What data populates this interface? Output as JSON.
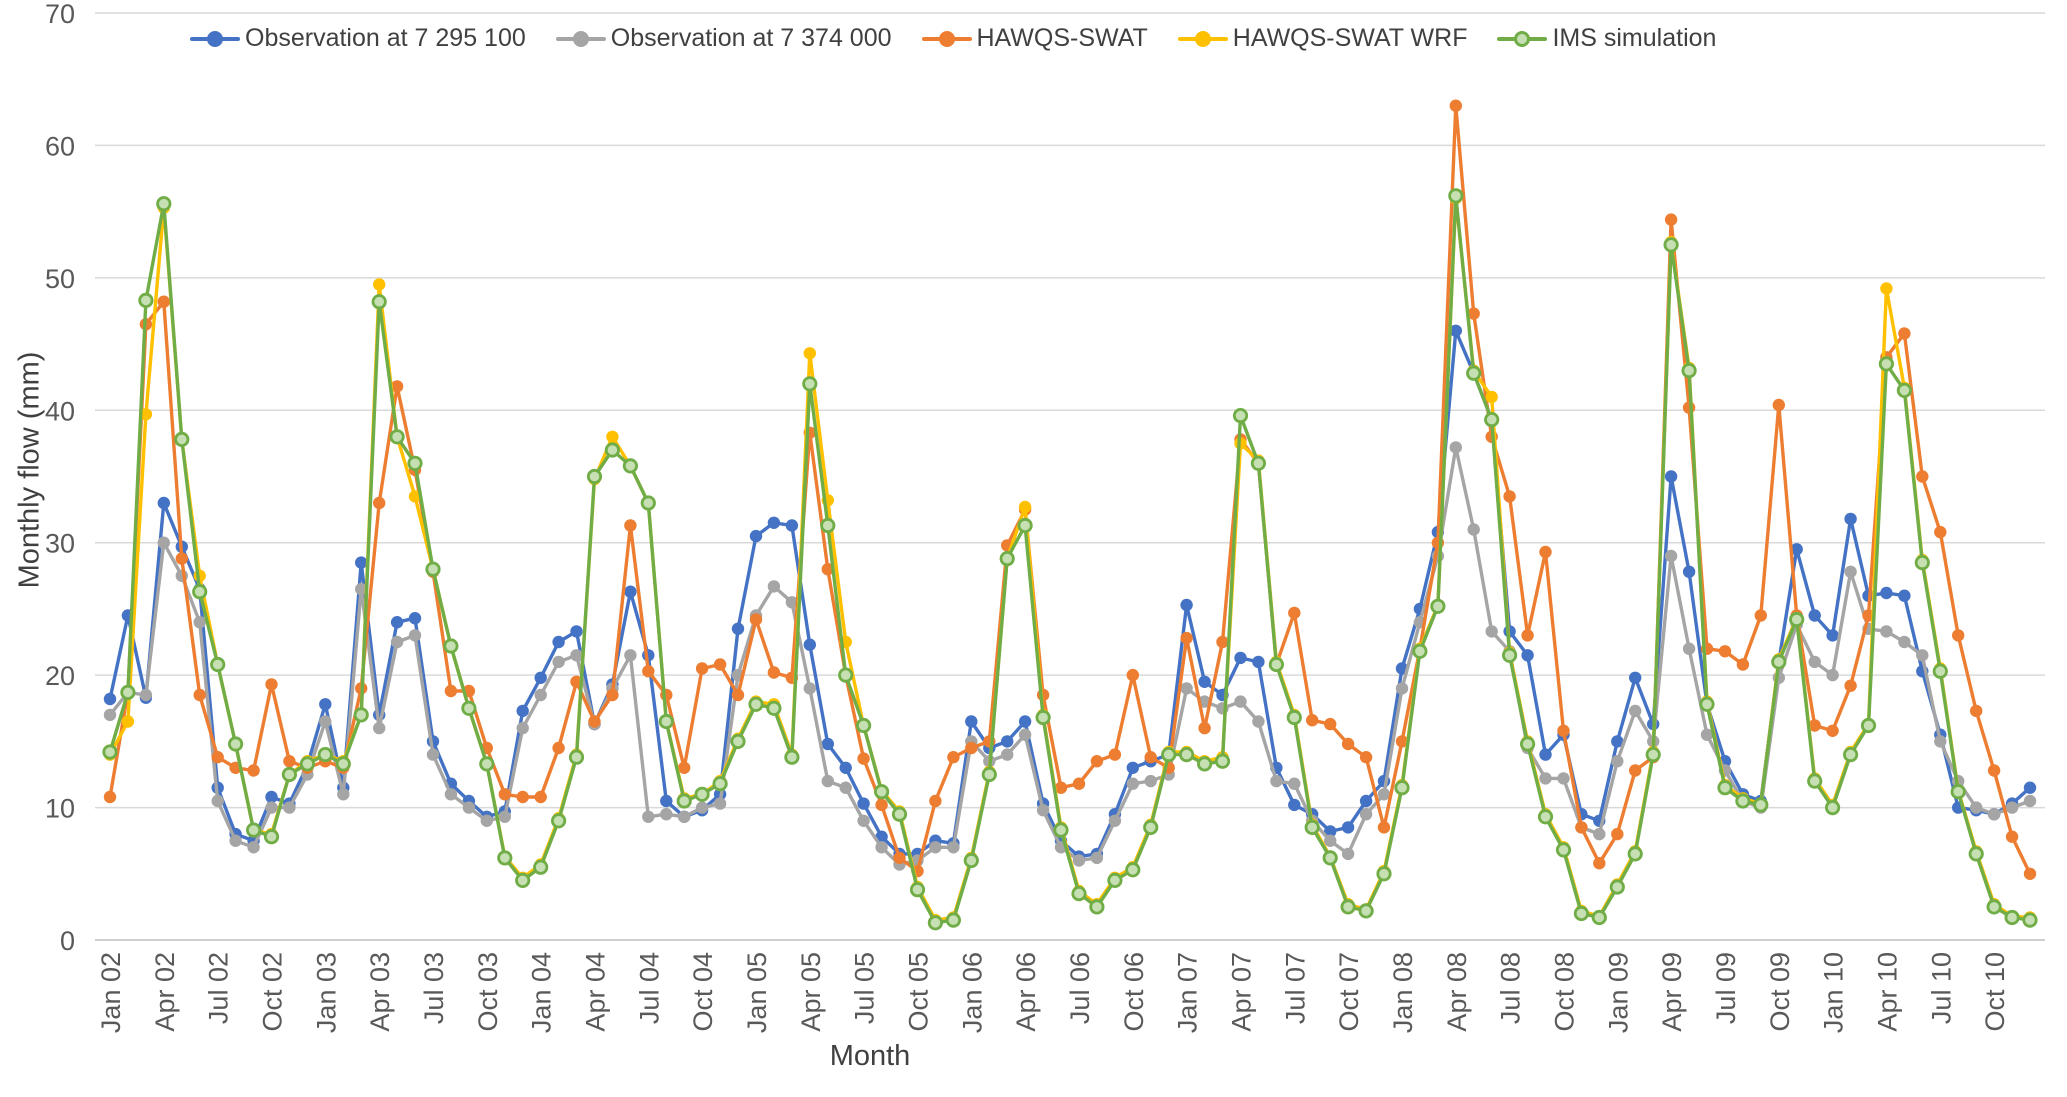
{
  "chart_data": {
    "type": "line",
    "title": "",
    "xlabel": "Month",
    "ylabel": "Monthly flow (mm)",
    "ylim": [
      0,
      70
    ],
    "y_ticks": [
      0,
      10,
      20,
      30,
      40,
      50,
      60,
      70
    ],
    "x_tick_every": 3,
    "grid": true,
    "legend_position": "top",
    "axis_color": "#bfbfbf",
    "grid_color": "#d9d9d9",
    "months": [
      "Jan 02",
      "Feb 02",
      "Mar 02",
      "Apr 02",
      "May 02",
      "Jun 02",
      "Jul 02",
      "Aug 02",
      "Sep 02",
      "Oct 02",
      "Nov 02",
      "Dec 02",
      "Jan 03",
      "Feb 03",
      "Mar 03",
      "Apr 03",
      "May 03",
      "Jun 03",
      "Jul 03",
      "Aug 03",
      "Sep 03",
      "Oct 03",
      "Nov 03",
      "Dec 03",
      "Jan 04",
      "Feb 04",
      "Mar 04",
      "Apr 04",
      "May 04",
      "Jun 04",
      "Jul 04",
      "Aug 04",
      "Sep 04",
      "Oct 04",
      "Nov 04",
      "Dec 04",
      "Jan 05",
      "Feb 05",
      "Mar 05",
      "Apr 05",
      "May 05",
      "Jun 05",
      "Jul 05",
      "Aug 05",
      "Sep 05",
      "Oct 05",
      "Nov 05",
      "Dec 05",
      "Jan 06",
      "Feb 06",
      "Mar 06",
      "Apr 06",
      "May 06",
      "Jun 06",
      "Jul 06",
      "Aug 06",
      "Sep 06",
      "Oct 06",
      "Nov 06",
      "Dec 06",
      "Jan 07",
      "Feb 07",
      "Mar 07",
      "Apr 07",
      "May 07",
      "Jun 07",
      "Jul 07",
      "Aug 07",
      "Sep 07",
      "Oct 07",
      "Nov 07",
      "Dec 07",
      "Jan 08",
      "Feb 08",
      "Mar 08",
      "Apr 08",
      "May 08",
      "Jun 08",
      "Jul 08",
      "Aug 08",
      "Sep 08",
      "Oct 08",
      "Nov 08",
      "Dec 08",
      "Jan 09",
      "Feb 09",
      "Mar 09",
      "Apr 09",
      "May 09",
      "Jun 09",
      "Jul 09",
      "Aug 09",
      "Sep 09",
      "Oct 09",
      "Nov 09",
      "Dec 09",
      "Jan 10",
      "Feb 10",
      "Mar 10",
      "Apr 10",
      "May 10",
      "Jun 10",
      "Jul 10",
      "Aug 10",
      "Sep 10",
      "Oct 10",
      "Nov 10",
      "Dec 10"
    ],
    "series": [
      {
        "id": "obs-7295100",
        "name": "Observation at 7 295 100",
        "color": "#4472C4",
        "marker_fill": "#4472C4",
        "values": [
          18.2,
          24.5,
          18.3,
          33.0,
          29.7,
          26.5,
          11.5,
          8.0,
          7.5,
          10.8,
          10.3,
          13.2,
          17.8,
          11.5,
          28.5,
          17.0,
          24.0,
          24.3,
          15.0,
          11.8,
          10.5,
          9.3,
          9.7,
          17.3,
          19.8,
          22.5,
          23.3,
          16.3,
          19.3,
          26.3,
          21.5,
          10.5,
          9.3,
          9.8,
          11.0,
          23.5,
          30.5,
          31.5,
          31.3,
          22.3,
          14.8,
          13.0,
          10.3,
          7.8,
          6.5,
          6.5,
          7.5,
          7.3,
          16.5,
          14.5,
          15.0,
          16.5,
          10.3,
          7.5,
          6.3,
          6.5,
          9.5,
          13.0,
          13.5,
          14.0,
          25.3,
          19.5,
          18.5,
          21.3,
          21.0,
          13.0,
          10.2,
          9.5,
          8.2,
          8.5,
          10.5,
          12.0,
          20.5,
          25.0,
          30.8,
          46.0,
          42.8,
          39.3,
          23.3,
          21.5,
          14.0,
          15.5,
          9.5,
          9.0,
          15.0,
          19.8,
          16.3,
          35.0,
          27.8,
          17.8,
          13.5,
          11.0,
          10.5,
          21.0,
          29.5,
          24.5,
          23.0,
          31.8,
          26.0,
          26.2,
          26.0,
          20.3,
          15.5,
          10.0,
          9.8,
          9.5,
          10.3,
          11.5
        ]
      },
      {
        "id": "obs-7374000",
        "name": "Observation at 7 374 000",
        "color": "#A5A5A5",
        "marker_fill": "#A5A5A5",
        "values": [
          17.0,
          18.7,
          18.5,
          30.0,
          27.5,
          24.0,
          10.5,
          7.5,
          7.0,
          10.0,
          10.0,
          12.5,
          16.5,
          11.0,
          26.5,
          16.0,
          22.5,
          23.0,
          14.0,
          11.0,
          10.0,
          9.0,
          9.3,
          16.0,
          18.5,
          21.0,
          21.5,
          16.3,
          19.0,
          21.5,
          9.3,
          9.5,
          9.3,
          10.0,
          10.3,
          20.0,
          24.5,
          26.7,
          25.5,
          19.0,
          12.0,
          11.5,
          9.0,
          7.0,
          5.7,
          6.0,
          7.0,
          7.0,
          15.0,
          13.5,
          14.0,
          15.5,
          9.8,
          7.0,
          6.0,
          6.2,
          9.0,
          11.8,
          12.0,
          12.5,
          19.0,
          18.0,
          17.5,
          18.0,
          16.5,
          12.0,
          11.8,
          9.0,
          7.5,
          6.5,
          9.5,
          11.0,
          19.0,
          24.0,
          29.0,
          37.2,
          31.0,
          23.3,
          21.8,
          14.5,
          12.2,
          12.2,
          8.5,
          8.0,
          13.5,
          17.3,
          15.0,
          29.0,
          22.0,
          15.5,
          12.8,
          10.5,
          10.0,
          19.8,
          23.8,
          21.0,
          20.0,
          27.8,
          23.5,
          23.3,
          22.5,
          21.5,
          15.0,
          12.0,
          10.0,
          9.5,
          10.0,
          10.5
        ]
      },
      {
        "id": "hawqs-swat",
        "name": "HAWQS-SWAT",
        "color": "#ED7D31",
        "marker_fill": "#ED7D31",
        "values": [
          10.8,
          18.7,
          46.5,
          48.2,
          28.8,
          18.5,
          13.8,
          13.0,
          12.8,
          19.3,
          13.5,
          13.0,
          13.5,
          13.0,
          19.0,
          33.0,
          41.8,
          35.5,
          27.8,
          18.8,
          18.8,
          14.5,
          11.0,
          10.8,
          10.8,
          14.5,
          19.5,
          16.5,
          18.5,
          31.3,
          20.3,
          18.5,
          13.0,
          20.5,
          20.8,
          18.5,
          24.2,
          20.2,
          19.8,
          38.3,
          28.0,
          20.0,
          13.7,
          10.2,
          6.2,
          5.2,
          10.5,
          13.8,
          14.5,
          15.0,
          29.8,
          32.5,
          18.5,
          11.5,
          11.8,
          13.5,
          14.0,
          20.0,
          13.8,
          13.0,
          22.8,
          16.0,
          22.5,
          37.8,
          36.0,
          20.8,
          24.7,
          16.6,
          16.3,
          14.8,
          13.8,
          8.5,
          15.0,
          22.0,
          30.0,
          63.0,
          47.3,
          38.0,
          33.5,
          23.0,
          29.3,
          15.8,
          8.5,
          5.8,
          8.0,
          12.8,
          13.8,
          54.4,
          40.2,
          22.0,
          21.8,
          20.8,
          24.5,
          40.4,
          24.5,
          16.2,
          15.8,
          19.2,
          24.5,
          44.0,
          45.8,
          35.0,
          30.8,
          23.0,
          17.3,
          12.8,
          7.8,
          5.0
        ]
      },
      {
        "id": "hawqs-swat-wrf",
        "name": "HAWQS-SWAT WRF",
        "color": "#FFC000",
        "marker_fill": "#FFC000",
        "values": [
          14.0,
          16.5,
          39.7,
          55.3,
          37.8,
          27.5,
          20.8,
          14.8,
          8.3,
          8.0,
          12.5,
          13.5,
          14.0,
          13.5,
          17.0,
          49.5,
          38.0,
          33.5,
          28.0,
          22.2,
          17.5,
          13.3,
          6.3,
          4.7,
          5.7,
          9.2,
          14.0,
          34.8,
          38.0,
          35.8,
          33.0,
          16.5,
          10.7,
          11.0,
          12.0,
          15.2,
          18.0,
          17.8,
          14.0,
          44.3,
          33.2,
          22.5,
          16.2,
          11.3,
          9.7,
          4.0,
          1.5,
          1.7,
          6.2,
          12.7,
          28.8,
          32.7,
          17.0,
          8.5,
          3.7,
          2.7,
          4.7,
          5.5,
          8.7,
          14.2,
          14.2,
          13.5,
          13.8,
          37.5,
          36.2,
          21.0,
          17.0,
          8.7,
          6.3,
          2.7,
          2.3,
          5.2,
          11.7,
          22.0,
          25.3,
          56.0,
          43.0,
          41.0,
          21.7,
          15.0,
          9.5,
          7.0,
          2.2,
          1.8,
          4.2,
          6.7,
          14.2,
          52.7,
          43.2,
          18.0,
          11.7,
          10.7,
          10.3,
          21.2,
          24.3,
          12.2,
          10.2,
          14.2,
          16.3,
          49.2,
          41.7,
          28.7,
          20.5,
          11.3,
          6.7,
          2.7,
          1.8,
          1.7
        ]
      },
      {
        "id": "ims-simulation",
        "name": "IMS simulation",
        "color": "#70AD47",
        "marker_fill": "#C6E0B4",
        "marker_stroke": "#70AD47",
        "values": [
          14.2,
          18.7,
          48.3,
          55.6,
          37.8,
          26.3,
          20.8,
          14.8,
          8.3,
          7.8,
          12.5,
          13.3,
          14.0,
          13.3,
          17.0,
          48.2,
          38.0,
          36.0,
          28.0,
          22.2,
          17.5,
          13.3,
          6.2,
          4.5,
          5.5,
          9.0,
          13.8,
          35.0,
          37.0,
          35.8,
          33.0,
          16.5,
          10.5,
          11.0,
          11.8,
          15.0,
          17.8,
          17.5,
          13.8,
          42.0,
          31.3,
          20.0,
          16.2,
          11.2,
          9.5,
          3.8,
          1.3,
          1.5,
          6.0,
          12.5,
          28.8,
          31.3,
          16.8,
          8.3,
          3.5,
          2.5,
          4.5,
          5.3,
          8.5,
          14.0,
          14.0,
          13.3,
          13.5,
          39.6,
          36.0,
          20.8,
          16.8,
          8.5,
          6.2,
          2.5,
          2.2,
          5.0,
          11.5,
          21.8,
          25.2,
          56.2,
          42.8,
          39.3,
          21.5,
          14.8,
          9.3,
          6.8,
          2.0,
          1.7,
          4.0,
          6.5,
          14.0,
          52.5,
          43.0,
          17.8,
          11.5,
          10.5,
          10.2,
          21.0,
          24.2,
          12.0,
          10.0,
          14.0,
          16.2,
          43.5,
          41.5,
          28.5,
          20.3,
          11.2,
          6.5,
          2.5,
          1.7,
          1.5
        ]
      }
    ]
  }
}
